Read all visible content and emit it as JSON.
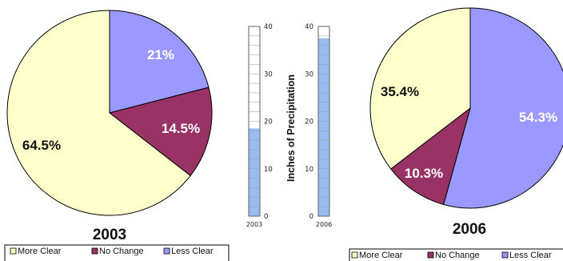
{
  "colors": {
    "more_clear": "#FFFFCC",
    "no_change": "#993366",
    "less_clear": "#9999FF",
    "gauge_fill": "#99BBEE"
  },
  "chart_data": [
    {
      "type": "pie",
      "title": "2003",
      "slices": [
        {
          "name": "Less Clear",
          "value": 21.0,
          "label": "21%"
        },
        {
          "name": "No Change",
          "value": 14.5,
          "label": "14.5%"
        },
        {
          "name": "More Clear",
          "value": 64.5,
          "label": "64.5%"
        }
      ],
      "legend": [
        "More Clear",
        "No Change",
        "Less Clear"
      ],
      "legend_placement": "bottom"
    },
    {
      "type": "bar",
      "ylabel": "Inches of Precipitation",
      "ylim": [
        0,
        40
      ],
      "yticks": [
        "0",
        "10",
        "20",
        "30",
        "40"
      ],
      "series": [
        {
          "category": "2003",
          "value": 18.5
        },
        {
          "category": "2006",
          "value": 37.5
        }
      ]
    },
    {
      "type": "pie",
      "title": "2006",
      "slices": [
        {
          "name": "Less Clear",
          "value": 54.3,
          "label": "54.3%"
        },
        {
          "name": "No Change",
          "value": 10.3,
          "label": "10.3%"
        },
        {
          "name": "More Clear",
          "value": 35.4,
          "label": "35.4%"
        }
      ],
      "legend": [
        "More Clear",
        "No Change",
        "Less Clear"
      ],
      "legend_placement": "bottom"
    }
  ]
}
